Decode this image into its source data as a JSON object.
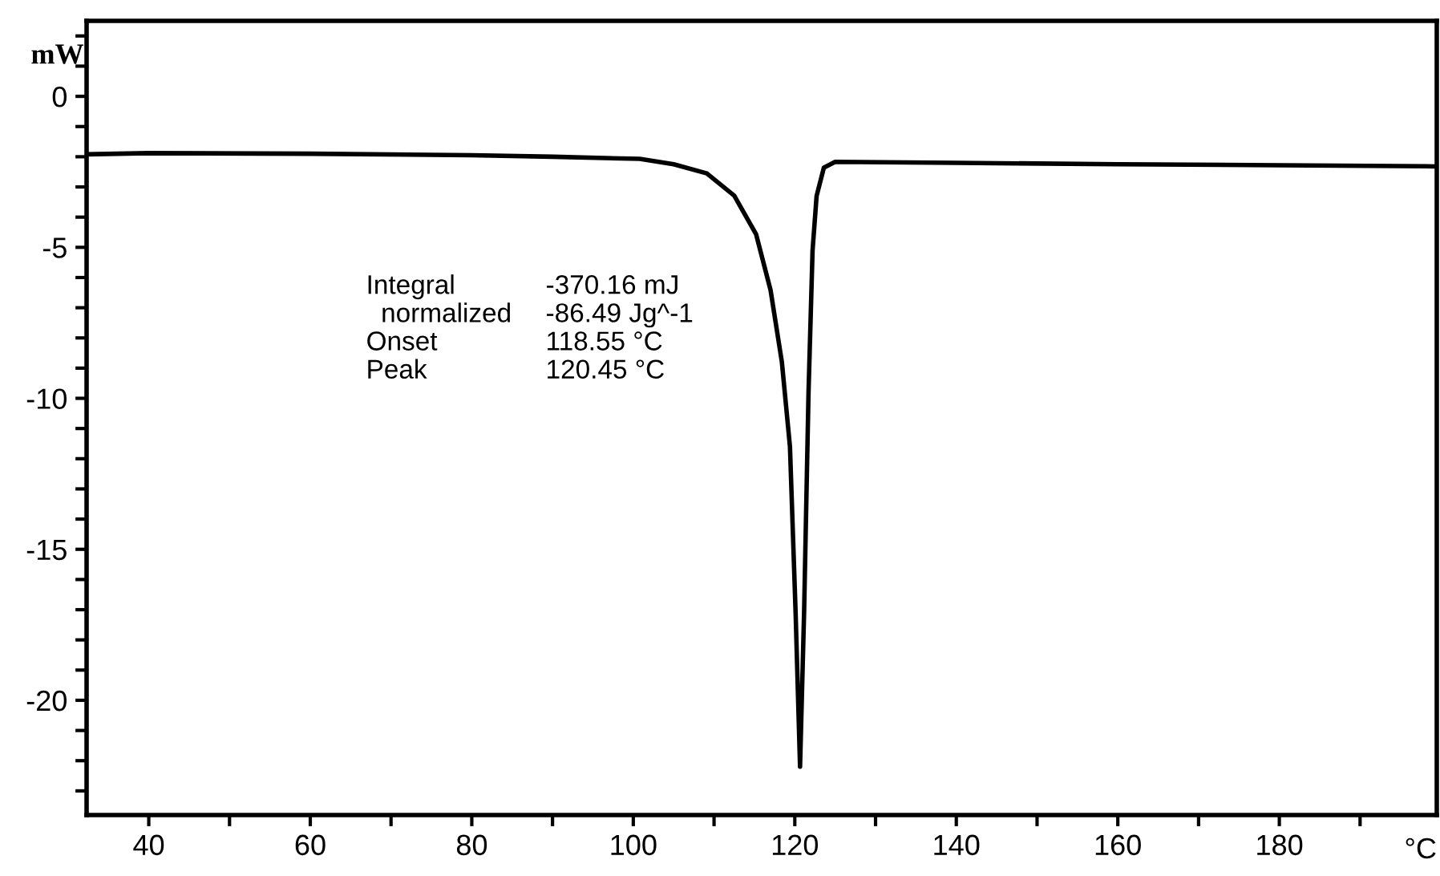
{
  "chart_data": {
    "type": "line",
    "ylabel": "mW",
    "xlabel": "°C",
    "annotations": [
      "Integral",
      "-370.16 mJ",
      "  normalized",
      "-86.49 Jg^-1",
      "Onset",
      "118.55 °C",
      "Peak",
      "120.45 °C"
    ],
    "xlim": [
      32.3,
      199.5
    ],
    "ylim": [
      -23.8,
      2.5
    ],
    "xticks": [
      40,
      {
        "value": 50,
        "label": null
      },
      60,
      {
        "value": 70,
        "label": null
      },
      80,
      {
        "value": 90,
        "label": null
      },
      100,
      {
        "value": 110,
        "label": null
      },
      120,
      {
        "value": 130,
        "label": null
      },
      140,
      {
        "value": 150,
        "label": null
      },
      160,
      {
        "value": 170,
        "label": null
      },
      180,
      {
        "value": 190,
        "label": null
      }
    ],
    "yticks": [
      {
        "value": 2,
        "label": null
      },
      {
        "value": 1,
        "label": null
      },
      0,
      {
        "value": -1,
        "label": null
      },
      {
        "value": -2,
        "label": null
      },
      {
        "value": -3,
        "label": null
      },
      {
        "value": -4,
        "label": null
      },
      -5,
      {
        "value": -6,
        "label": null
      },
      {
        "value": -7,
        "label": null
      },
      {
        "value": -8,
        "label": null
      },
      {
        "value": -9,
        "label": null
      },
      -10,
      {
        "value": -11,
        "label": null
      },
      {
        "value": -12,
        "label": null
      },
      {
        "value": -13,
        "label": null
      },
      {
        "value": -14,
        "label": null
      },
      -15,
      {
        "value": -16,
        "label": null
      },
      {
        "value": -17,
        "label": null
      },
      {
        "value": -18,
        "label": null
      },
      {
        "value": -19,
        "label": null
      },
      -20,
      {
        "value": -21,
        "label": null
      },
      {
        "value": -22,
        "label": null
      },
      {
        "value": -23,
        "label": null
      }
    ],
    "grid": false,
    "legend": false,
    "series": [
      {
        "color": "#000000",
        "x": [
          32.3,
          40,
          60,
          80,
          90,
          100.8,
          105,
          109.1,
          112.5,
          115.2,
          117.0,
          118.4,
          119.4,
          120.1,
          120.65,
          121.15,
          121.7,
          122.2,
          122.7,
          123.6,
          125.0,
          140,
          160,
          180,
          199.5
        ],
        "values": [
          -1.92,
          -1.88,
          -1.9,
          -1.95,
          -2.0,
          -2.07,
          -2.25,
          -2.55,
          -3.29,
          -4.56,
          -6.42,
          -8.8,
          -11.6,
          -17.1,
          -22.2,
          -17.1,
          -9.8,
          -5.1,
          -3.3,
          -2.36,
          -2.17,
          -2.2,
          -2.25,
          -2.28,
          -2.32
        ]
      }
    ]
  }
}
